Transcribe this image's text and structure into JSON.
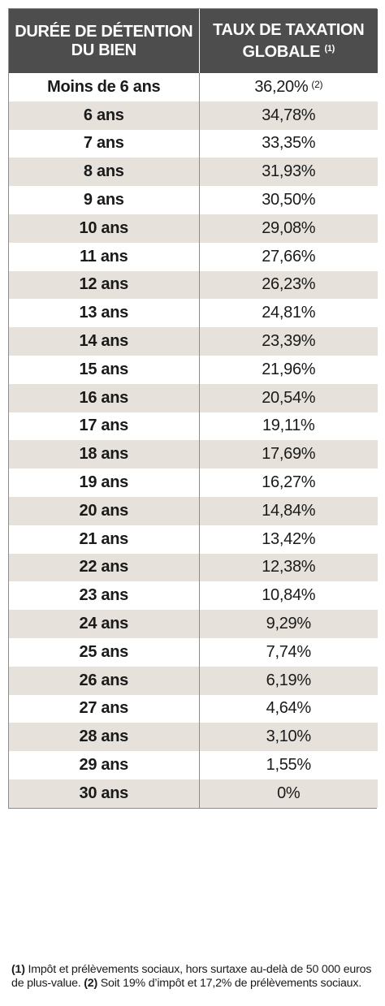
{
  "table": {
    "headers": {
      "duration": "DURÉE DE DÉTENTION DU BIEN",
      "rate": "TAUX DE TAXATION GLOBALE",
      "rate_note": "(1)"
    },
    "rows": [
      {
        "duration": "Moins de 6 ans",
        "rate": "36,20%",
        "note": "(2)"
      },
      {
        "duration": "6 ans",
        "rate": "34,78%"
      },
      {
        "duration": "7 ans",
        "rate": "33,35%"
      },
      {
        "duration": "8 ans",
        "rate": "31,93%"
      },
      {
        "duration": "9 ans",
        "rate": "30,50%"
      },
      {
        "duration": "10 ans",
        "rate": "29,08%"
      },
      {
        "duration": "11 ans",
        "rate": "27,66%"
      },
      {
        "duration": "12 ans",
        "rate": "26,23%"
      },
      {
        "duration": "13 ans",
        "rate": "24,81%"
      },
      {
        "duration": "14 ans",
        "rate": "23,39%"
      },
      {
        "duration": "15 ans",
        "rate": "21,96%"
      },
      {
        "duration": "16 ans",
        "rate": "20,54%"
      },
      {
        "duration": "17 ans",
        "rate": "19,11%"
      },
      {
        "duration": "18 ans",
        "rate": "17,69%"
      },
      {
        "duration": "19 ans",
        "rate": "16,27%"
      },
      {
        "duration": "20 ans",
        "rate": "14,84%"
      },
      {
        "duration": "21 ans",
        "rate": "13,42%"
      },
      {
        "duration": "22 ans",
        "rate": "12,38%"
      },
      {
        "duration": "23 ans",
        "rate": "10,84%"
      },
      {
        "duration": "24 ans",
        "rate": "9,29%"
      },
      {
        "duration": "25 ans",
        "rate": "7,74%"
      },
      {
        "duration": "26 ans",
        "rate": "6,19%"
      },
      {
        "duration": "27 ans",
        "rate": "4,64%"
      },
      {
        "duration": "28 ans",
        "rate": "3,10%"
      },
      {
        "duration": "29 ans",
        "rate": "1,55%"
      },
      {
        "duration": "30 ans",
        "rate": "0%"
      }
    ]
  },
  "footnotes": {
    "note1_marker": "(1)",
    "note1_text": " Impôt et prélèvements sociaux, hors surtaxe au-delà de 50 000 euros de plus-value. ",
    "note2_marker": "(2)",
    "note2_text": " Soit 19% d’impôt et 17,2% de prélèvements sociaux."
  },
  "colors": {
    "header_bg": "#4d4d4d",
    "stripe_bg": "#e6e1db",
    "border": "#8c8c8c"
  }
}
